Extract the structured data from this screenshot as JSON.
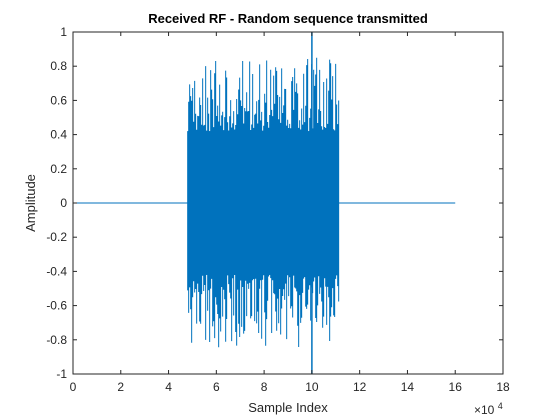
{
  "chart_data": {
    "type": "line",
    "title": "Received RF - Random sequence transmitted",
    "xlabel": "Sample Index",
    "ylabel": "Amplitude",
    "x_multiplier_base": "×10",
    "x_multiplier_exp": "4",
    "xlim": [
      0,
      18
    ],
    "ylim": [
      -1,
      1
    ],
    "xticks": [
      0,
      2,
      4,
      6,
      8,
      10,
      12,
      14,
      16,
      18
    ],
    "yticks": [
      -1,
      -0.8,
      -0.6,
      -0.4,
      -0.2,
      0,
      0.2,
      0.4,
      0.6,
      0.8,
      1
    ],
    "grid": false,
    "series": [
      {
        "color": "#0072BD",
        "baseline": {
          "x": [
            0,
            4.8,
            11.1,
            16.0
          ],
          "y": [
            0,
            0,
            0,
            0
          ]
        },
        "burst": {
          "x_start": 4.8,
          "x_end": 11.1,
          "core_amplitude": 0.42,
          "peak_amplitude": 0.85
        },
        "spike": {
          "x": 10.0,
          "y_min": -1.0,
          "y_max": 1.0
        }
      }
    ]
  }
}
